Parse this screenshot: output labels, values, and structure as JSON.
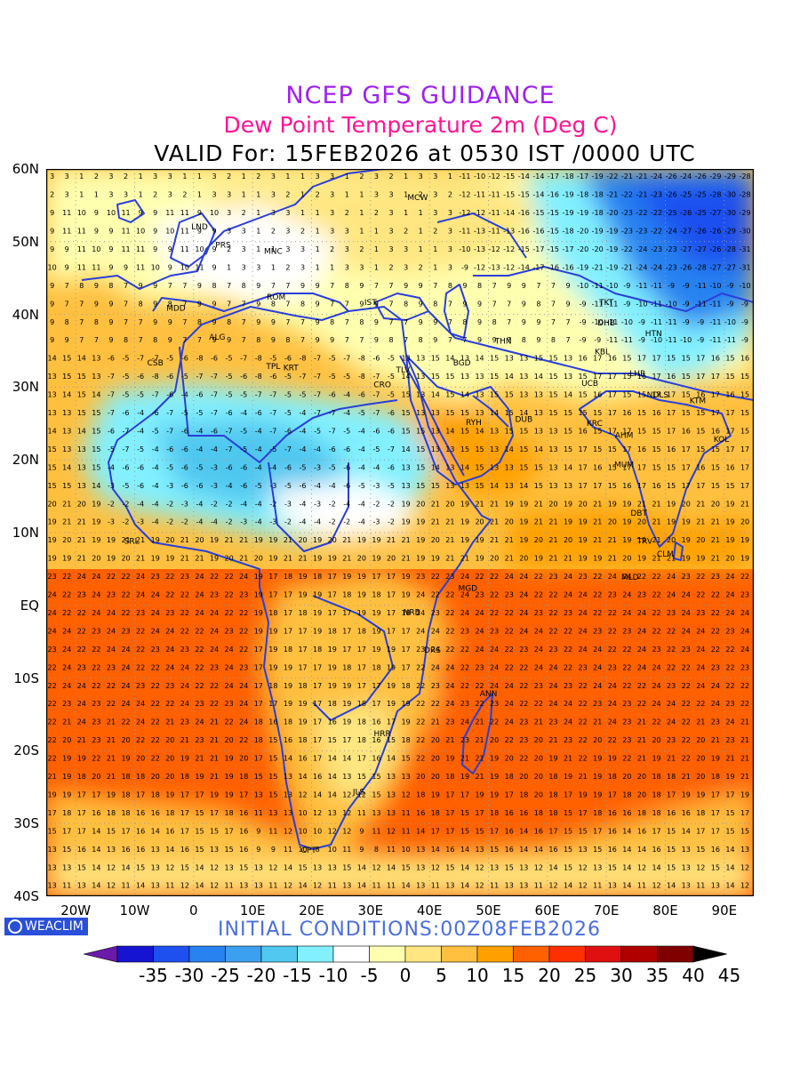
{
  "title": {
    "line1": "NCEP GFS GUIDANCE",
    "line2": "Dew Point Temperature 2m (Deg C)",
    "line3": "VALID For: 15FEB2026 at 0530 IST /0000 UTC"
  },
  "initial_conditions": "INITIAL CONDITIONS:00Z08FEB2026",
  "logo_text": "WEACLIM",
  "logo_icon": "weaclim-circle-icon",
  "lat_labels": [
    "60N",
    "50N",
    "40N",
    "30N",
    "20N",
    "10N",
    "EQ",
    "10S",
    "20S",
    "30S",
    "40S"
  ],
  "lon_labels": [
    "20W",
    "10W",
    "0",
    "10E",
    "20E",
    "30E",
    "40E",
    "50E",
    "60E",
    "70E",
    "80E",
    "90E"
  ],
  "colorbar": {
    "labels": [
      "-35",
      "-30",
      "-25",
      "-20",
      "-15",
      "-10",
      "-5",
      "0",
      "5",
      "10",
      "15",
      "20",
      "25",
      "30",
      "35",
      "40",
      "45"
    ],
    "colors": [
      "#6a1aa8",
      "#1414d2",
      "#1e50f0",
      "#2882f0",
      "#3ca0f0",
      "#50c8f0",
      "#82f0ff",
      "#ffffff",
      "#ffffb0",
      "#ffe680",
      "#ffc040",
      "#ffa000",
      "#ff6000",
      "#ff3000",
      "#e01010",
      "#b00000",
      "#800000",
      "#000000"
    ]
  },
  "map": {
    "variable": "Dew Point Temperature 2m",
    "units": "Deg C",
    "extent": {
      "lon_min": -25,
      "lon_max": 95,
      "lat_min": -40,
      "lat_max": 60
    },
    "colors": {
      "land_border": "#2a3fd8",
      "grid": "#9a9a9a"
    },
    "stations": [
      {
        "id": "LND",
        "lon": 1,
        "lat": 51.7
      },
      {
        "id": "PRS",
        "lon": 5,
        "lat": 49.2
      },
      {
        "id": "MNC",
        "lon": 13.5,
        "lat": 48.3
      },
      {
        "id": "MDD",
        "lon": -3,
        "lat": 40.5
      },
      {
        "id": "ROM",
        "lon": 14,
        "lat": 42
      },
      {
        "id": "IST",
        "lon": 30,
        "lat": 41.3
      },
      {
        "id": "MCW",
        "lon": 38,
        "lat": 55.7
      },
      {
        "id": "ALG",
        "lon": 4,
        "lat": 36.5
      },
      {
        "id": "CSB",
        "lon": -6.5,
        "lat": 33
      },
      {
        "id": "TPL",
        "lon": 13.5,
        "lat": 32.5
      },
      {
        "id": "KRT",
        "lon": 16.5,
        "lat": 32.3
      },
      {
        "id": "CRO",
        "lon": 32,
        "lat": 30
      },
      {
        "id": "TLV",
        "lon": 35.5,
        "lat": 32
      },
      {
        "id": "BGD",
        "lon": 45.5,
        "lat": 33
      },
      {
        "id": "THN",
        "lon": 52.5,
        "lat": 36
      },
      {
        "id": "RYH",
        "lon": 47.5,
        "lat": 24.8
      },
      {
        "id": "DUB",
        "lon": 56,
        "lat": 25.2
      },
      {
        "id": "KRC",
        "lon": 68,
        "lat": 24.7
      },
      {
        "id": "AHM",
        "lon": 73,
        "lat": 23
      },
      {
        "id": "MUM",
        "lon": 73,
        "lat": 19
      },
      {
        "id": "DHB",
        "lon": 70,
        "lat": 38.5
      },
      {
        "id": "TKT",
        "lon": 70,
        "lat": 41.3
      },
      {
        "id": "KBL",
        "lon": 69.3,
        "lat": 34.5
      },
      {
        "id": "LHR",
        "lon": 75.3,
        "lat": 31.5
      },
      {
        "id": "UCB",
        "lon": 67.2,
        "lat": 30.2
      },
      {
        "id": "NDLS",
        "lon": 78.7,
        "lat": 28.6
      },
      {
        "id": "KTM",
        "lon": 85.5,
        "lat": 27.8
      },
      {
        "id": "KOL",
        "lon": 89.5,
        "lat": 22.5
      },
      {
        "id": "HTN",
        "lon": 78,
        "lat": 37
      },
      {
        "id": "DBT",
        "lon": 75.5,
        "lat": 12.3
      },
      {
        "id": "TRV",
        "lon": 76.5,
        "lat": 8.5
      },
      {
        "id": "CLM",
        "lon": 80,
        "lat": 6.7
      },
      {
        "id": "MLD",
        "lon": 74,
        "lat": 3.5
      },
      {
        "id": "SRL",
        "lon": -10.5,
        "lat": 8.5
      },
      {
        "id": "MGD",
        "lon": 46.5,
        "lat": 2
      },
      {
        "id": "NRB",
        "lon": 37,
        "lat": -1.3
      },
      {
        "id": "DRS",
        "lon": 40.5,
        "lat": -6.5
      },
      {
        "id": "ANN",
        "lon": 50,
        "lat": -12.5
      },
      {
        "id": "HRR",
        "lon": 32,
        "lat": -18
      },
      {
        "id": "JLS",
        "lon": 28,
        "lat": -26
      },
      {
        "id": "CPT",
        "lon": 19.5,
        "lat": -34
      }
    ]
  }
}
